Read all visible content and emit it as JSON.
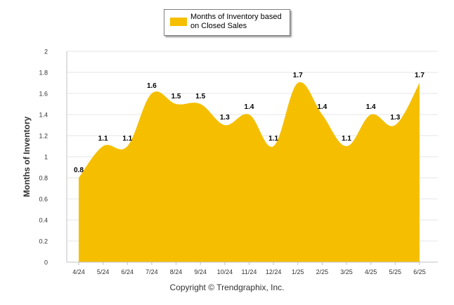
{
  "chart_data": {
    "type": "area",
    "categories": [
      "4/24",
      "5/24",
      "6/24",
      "7/24",
      "8/24",
      "9/24",
      "10/24",
      "11/24",
      "12/24",
      "1/25",
      "2/25",
      "3/25",
      "4/25",
      "5/25",
      "6/25"
    ],
    "series": [
      {
        "name": "Months of Inventory based on Closed Sales",
        "values": [
          0.8,
          1.1,
          1.1,
          1.6,
          1.5,
          1.5,
          1.3,
          1.4,
          1.1,
          1.7,
          1.4,
          1.1,
          1.4,
          1.3,
          1.7
        ]
      }
    ],
    "ylabel": "Months of Inventory",
    "xlabel": "",
    "ylim": [
      0,
      2
    ],
    "yticks": [
      "0",
      "0.2",
      "0.4",
      "0.6",
      "0.8",
      "1",
      "1.2",
      "1.4",
      "1.6",
      "1.8",
      "2"
    ],
    "data_labels": [
      "0.8",
      "1.1",
      "1.1",
      "1.6",
      "1.5",
      "1.5",
      "1.3",
      "1.4",
      "1.1",
      "1.7",
      "1.4",
      "1.1",
      "1.4",
      "1.3",
      "1.7"
    ],
    "grid": true,
    "legend_position": "top",
    "colors": {
      "fill": "#F5BF00",
      "grid": "#e6e6e6",
      "axis": "#c0c0c0"
    }
  },
  "legend": {
    "label": "Months of Inventory based on Closed Sales"
  },
  "footer": {
    "copyright": "Copyright © Trendgraphix, Inc."
  }
}
